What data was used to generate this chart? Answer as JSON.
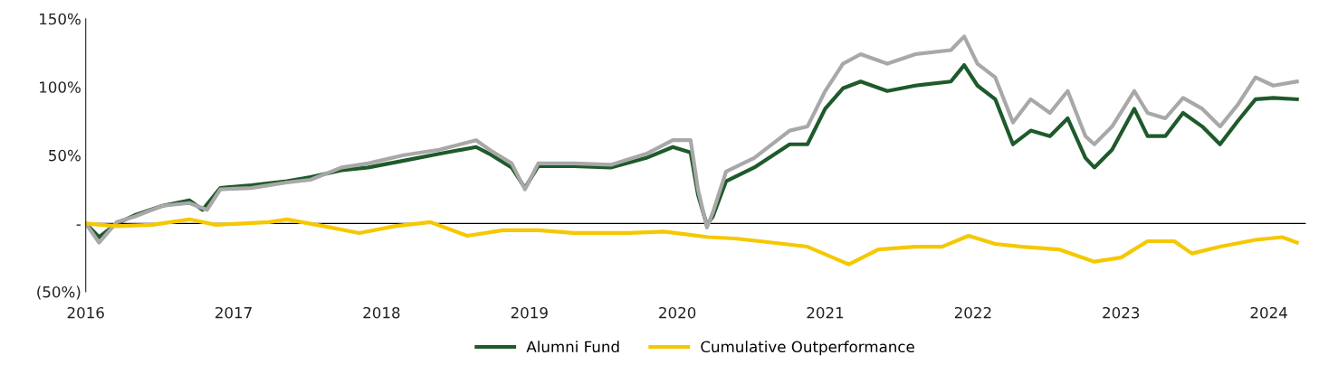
{
  "chart_data": {
    "type": "line",
    "xlim": [
      2016,
      2024.25
    ],
    "xticks": [
      2016,
      2017,
      2018,
      2019,
      2020,
      2021,
      2022,
      2023,
      2024
    ],
    "ylim": [
      -50,
      150
    ],
    "yticks": [
      {
        "value": -50,
        "label": "(50%)"
      },
      {
        "value": 0,
        "label": "-"
      },
      {
        "value": 50,
        "label": "50%"
      },
      {
        "value": 100,
        "label": "100%"
      },
      {
        "value": 150,
        "label": "150%"
      }
    ],
    "grid": false,
    "legend": "bottom",
    "line_style": "solid",
    "marker": "none",
    "ref_lines": [
      {
        "axis": "y",
        "value": 0,
        "color": "#000000"
      }
    ],
    "series": [
      {
        "name": "Alumni Fund",
        "color": "#1e5a2a",
        "x": [
          2016,
          2016.09,
          2016.21,
          2016.33,
          2016.52,
          2016.7,
          2016.79,
          2016.91,
          2017.12,
          2017.36,
          2017.52,
          2017.73,
          2017.91,
          2018.15,
          2018.39,
          2018.64,
          2018.73,
          2018.88,
          2018.97,
          2019.06,
          2019.3,
          2019.55,
          2019.79,
          2019.97,
          2020.09,
          2020.14,
          2020.2,
          2020.24,
          2020.33,
          2020.52,
          2020.76,
          2020.88,
          2021.0,
          2021.12,
          2021.24,
          2021.42,
          2021.61,
          2021.85,
          2021.94,
          2022.03,
          2022.15,
          2022.27,
          2022.39,
          2022.52,
          2022.64,
          2022.76,
          2022.82,
          2022.94,
          2023.09,
          2023.18,
          2023.3,
          2023.42,
          2023.55,
          2023.67,
          2023.79,
          2023.91,
          2024.03,
          2024.19
        ],
        "values": [
          0,
          -10,
          0,
          6,
          13,
          17,
          10,
          26,
          28,
          31,
          34,
          39,
          41,
          46,
          51,
          56,
          51,
          41,
          26,
          42,
          42,
          41,
          48,
          56,
          52,
          21,
          -1,
          5,
          31,
          41,
          58,
          58,
          84,
          99,
          104,
          97,
          101,
          104,
          116,
          101,
          91,
          58,
          68,
          64,
          77,
          48,
          41,
          54,
          84,
          64,
          64,
          81,
          71,
          58,
          75,
          91,
          92,
          91
        ]
      },
      {
        "color": "#a8a8a8",
        "x": [
          2016,
          2016.09,
          2016.21,
          2016.33,
          2016.52,
          2016.7,
          2016.82,
          2016.91,
          2017.12,
          2017.36,
          2017.52,
          2017.73,
          2017.91,
          2018.15,
          2018.39,
          2018.64,
          2018.73,
          2018.88,
          2018.97,
          2019.06,
          2019.3,
          2019.55,
          2019.79,
          2019.97,
          2020.09,
          2020.14,
          2020.2,
          2020.24,
          2020.33,
          2020.52,
          2020.76,
          2020.88,
          2021.0,
          2021.12,
          2021.24,
          2021.42,
          2021.61,
          2021.85,
          2021.94,
          2022.03,
          2022.15,
          2022.27,
          2022.39,
          2022.52,
          2022.64,
          2022.76,
          2022.82,
          2022.94,
          2023.09,
          2023.18,
          2023.3,
          2023.42,
          2023.55,
          2023.67,
          2023.79,
          2023.91,
          2024.03,
          2024.19
        ],
        "values": [
          0,
          -14,
          1,
          5,
          13,
          15,
          10,
          25,
          26,
          30,
          32,
          41,
          44,
          50,
          54,
          61,
          54,
          44,
          25,
          44,
          44,
          43,
          51,
          61,
          61,
          25,
          -3,
          8,
          38,
          48,
          68,
          71,
          97,
          117,
          124,
          117,
          124,
          127,
          137,
          117,
          107,
          74,
          91,
          81,
          97,
          64,
          58,
          71,
          97,
          81,
          77,
          92,
          84,
          71,
          87,
          107,
          101,
          104
        ]
      },
      {
        "name": "Cumulative Outperformance",
        "color": "#f5c800",
        "x": [
          2016,
          2016.21,
          2016.45,
          2016.7,
          2016.88,
          2017.24,
          2017.36,
          2017.61,
          2017.85,
          2018.09,
          2018.33,
          2018.58,
          2018.82,
          2019.06,
          2019.3,
          2019.67,
          2019.91,
          2020.21,
          2020.39,
          2020.64,
          2020.88,
          2021.16,
          2021.36,
          2021.61,
          2021.79,
          2021.97,
          2022.15,
          2022.33,
          2022.58,
          2022.82,
          2023.0,
          2023.18,
          2023.36,
          2023.48,
          2023.67,
          2023.91,
          2024.09,
          2024.19
        ],
        "values": [
          0,
          -2,
          -1,
          3,
          -1,
          1,
          3,
          -2,
          -7,
          -2,
          1,
          -9,
          -5,
          -5,
          -7,
          -7,
          -6,
          -10,
          -11,
          -14,
          -17,
          -30,
          -19,
          -17,
          -17,
          -9,
          -15,
          -17,
          -19,
          -28,
          -25,
          -13,
          -13,
          -22,
          -17,
          -12,
          -10,
          -14
        ]
      }
    ]
  }
}
